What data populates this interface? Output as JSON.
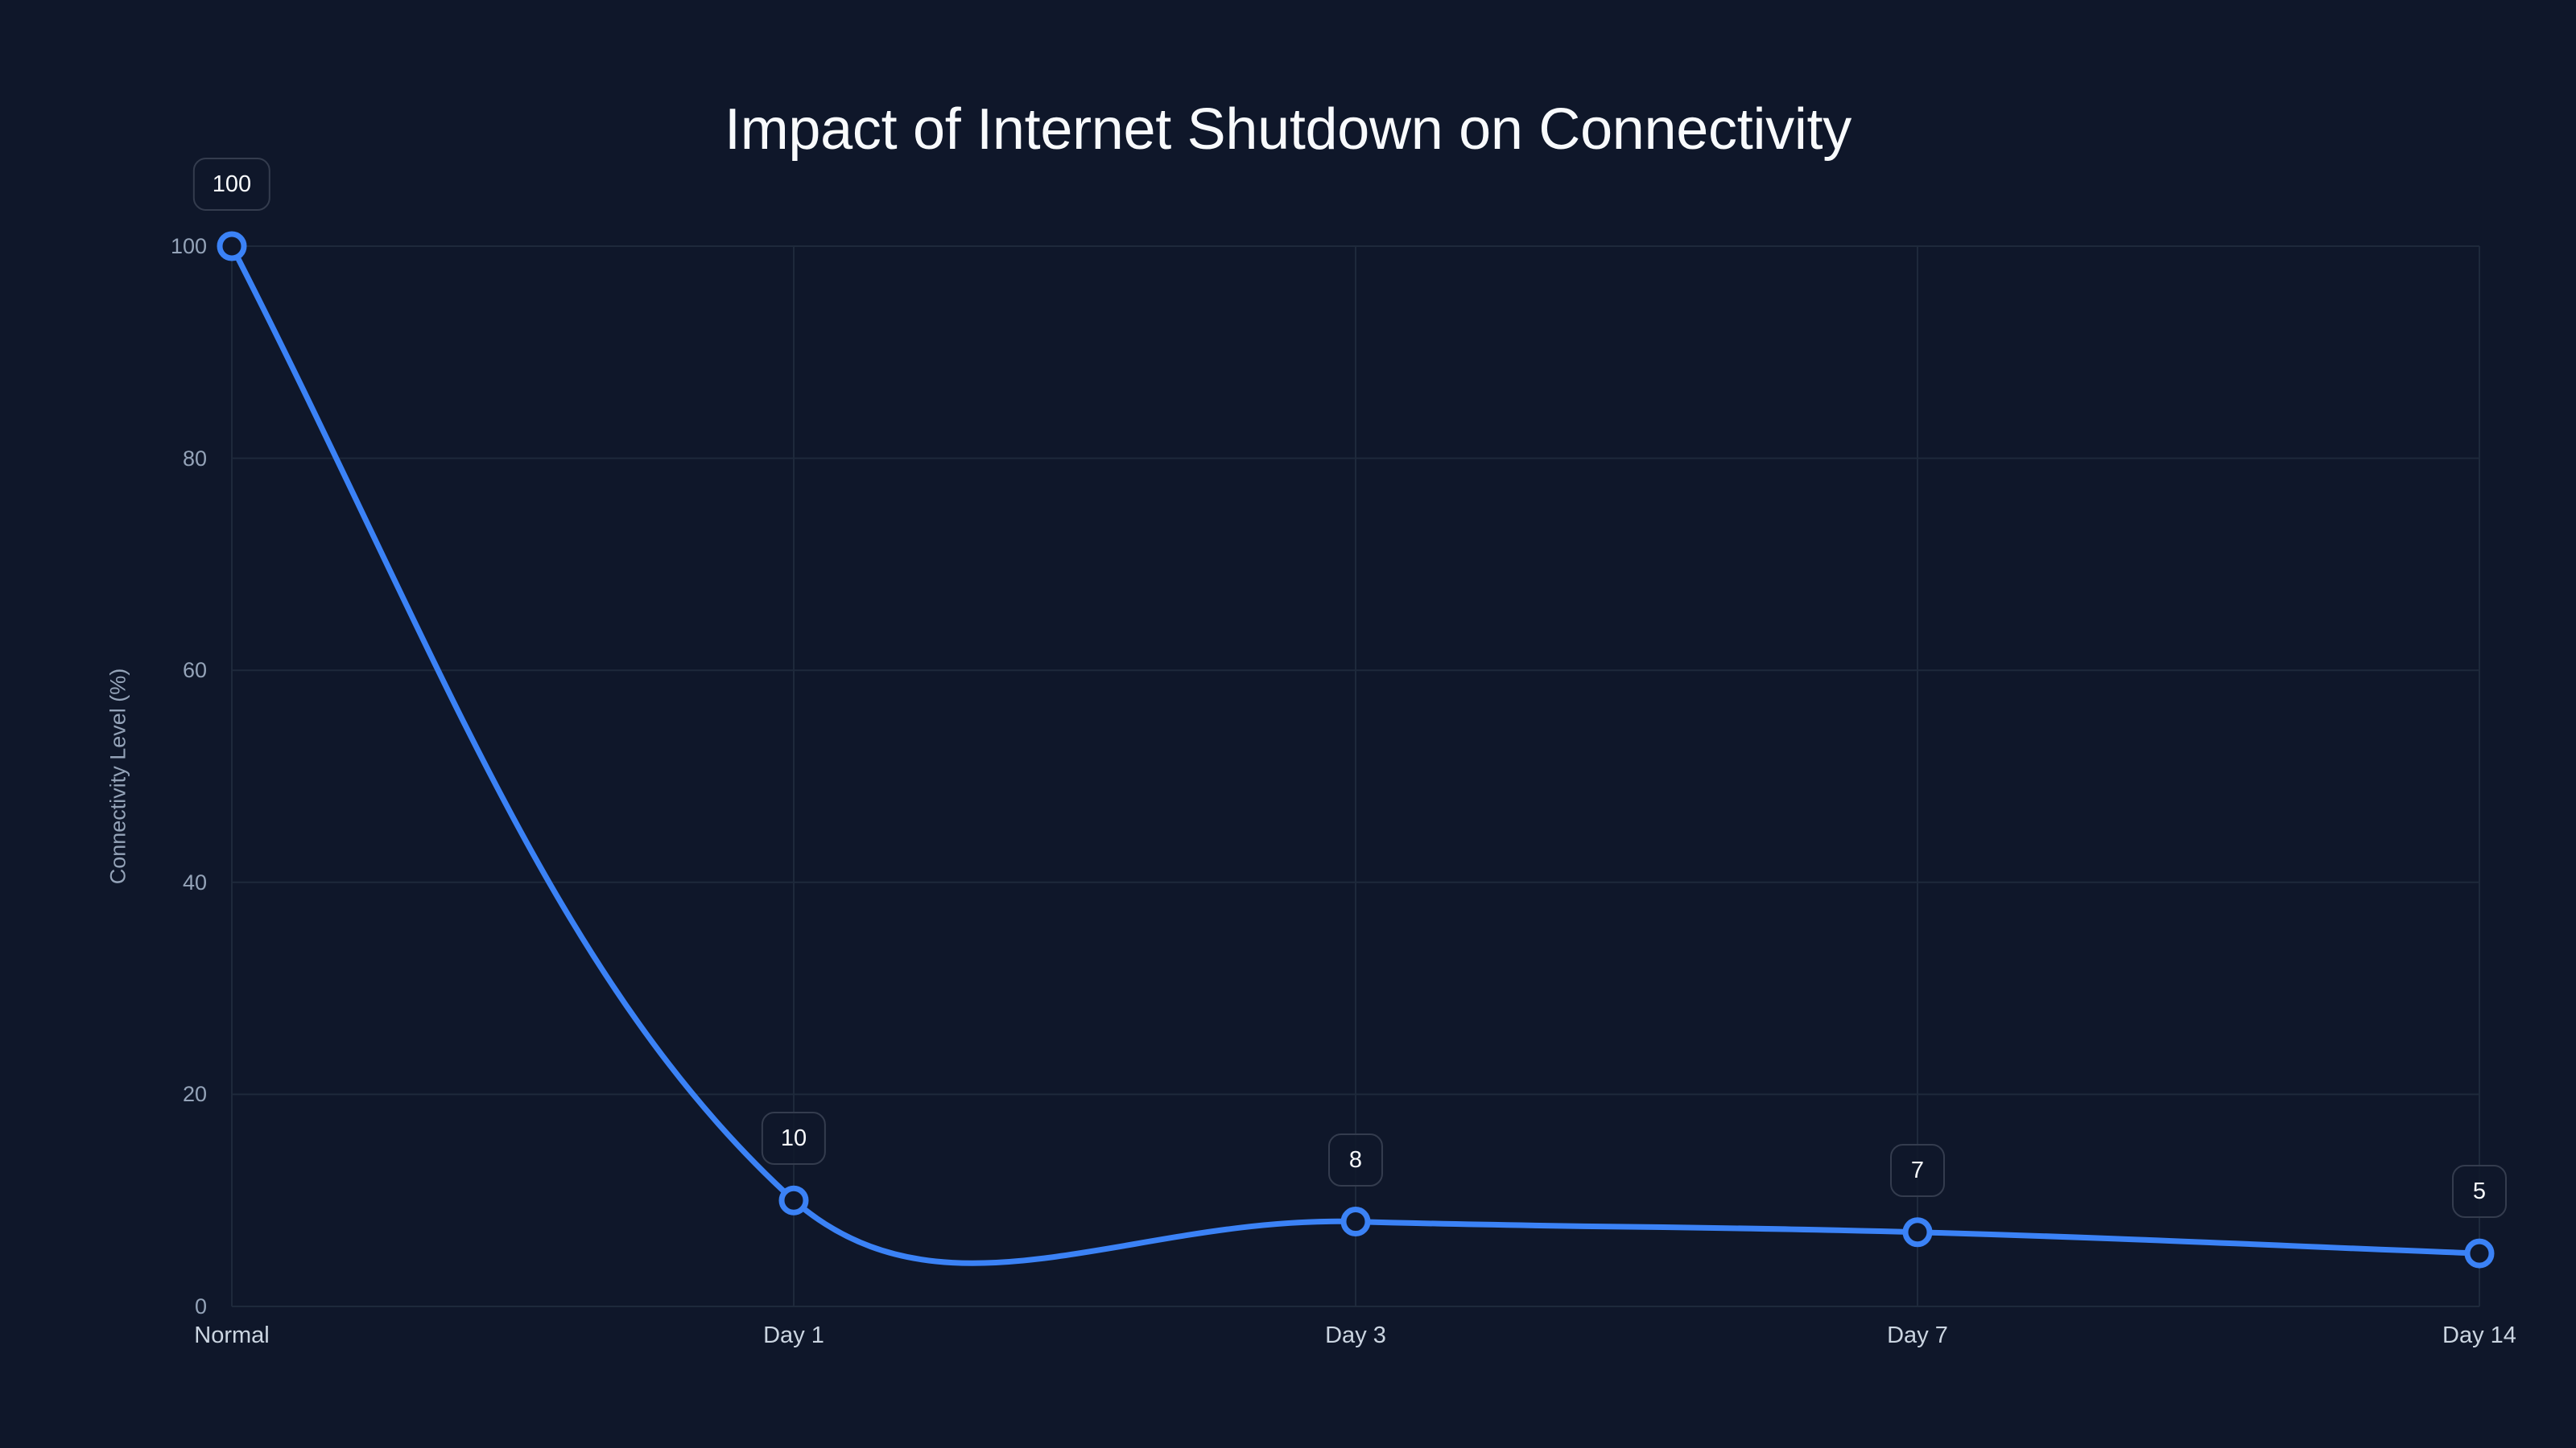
{
  "chart_data": {
    "type": "line",
    "title": "Impact of Internet Shutdown on Connectivity",
    "xlabel": "",
    "ylabel": "Connectivity Level (%)",
    "categories": [
      "Normal",
      "Day 1",
      "Day 3",
      "Day 7",
      "Day 14"
    ],
    "series": [
      {
        "name": "Connectivity Level (%)",
        "values": [
          100,
          10,
          8,
          7,
          5
        ],
        "color": "#3b82f6"
      }
    ],
    "data_labels": [
      "100",
      "10",
      "8",
      "7",
      "5"
    ],
    "ylim": [
      0,
      100
    ],
    "yticks": [
      0,
      20,
      40,
      60,
      80,
      100
    ],
    "ytick_labels": [
      "0",
      "20",
      "40",
      "60",
      "80",
      "100"
    ],
    "grid": true,
    "legend": "none",
    "smooth": true,
    "markers": "hollow-circle"
  },
  "colors": {
    "background": "#0f172a",
    "line": "#3b82f6",
    "grid": "#1e293b",
    "title": "#f8fafc",
    "tick_label": "#94a3b8",
    "category_label": "#cbd5e1",
    "data_label_border": "#343c4e"
  }
}
